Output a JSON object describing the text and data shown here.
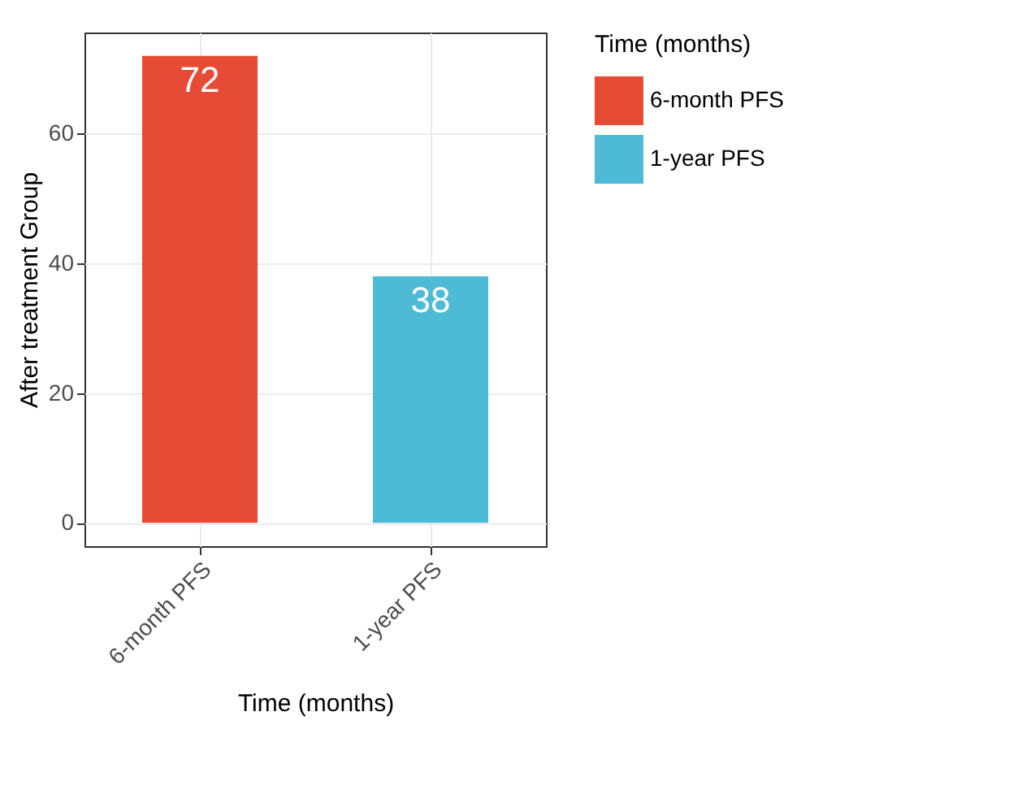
{
  "chart_data": {
    "type": "bar",
    "xlabel": "Time (months)",
    "ylabel": "After treatment Group",
    "legend_title": "Time (months)",
    "categories": [
      "6-month PFS",
      "1-year PFS"
    ],
    "series": [
      {
        "name": "6-month PFS",
        "color": "#e64b35",
        "values": [
          72,
          null
        ]
      },
      {
        "name": "1-year PFS",
        "color": "#4dbbd5",
        "values": [
          null,
          38
        ]
      }
    ],
    "stacked": true,
    "ylim": [
      -3.6,
      75.6
    ],
    "yticks": [
      0,
      20,
      40,
      60
    ],
    "grid": true,
    "legend": "right",
    "data_labels": true
  }
}
